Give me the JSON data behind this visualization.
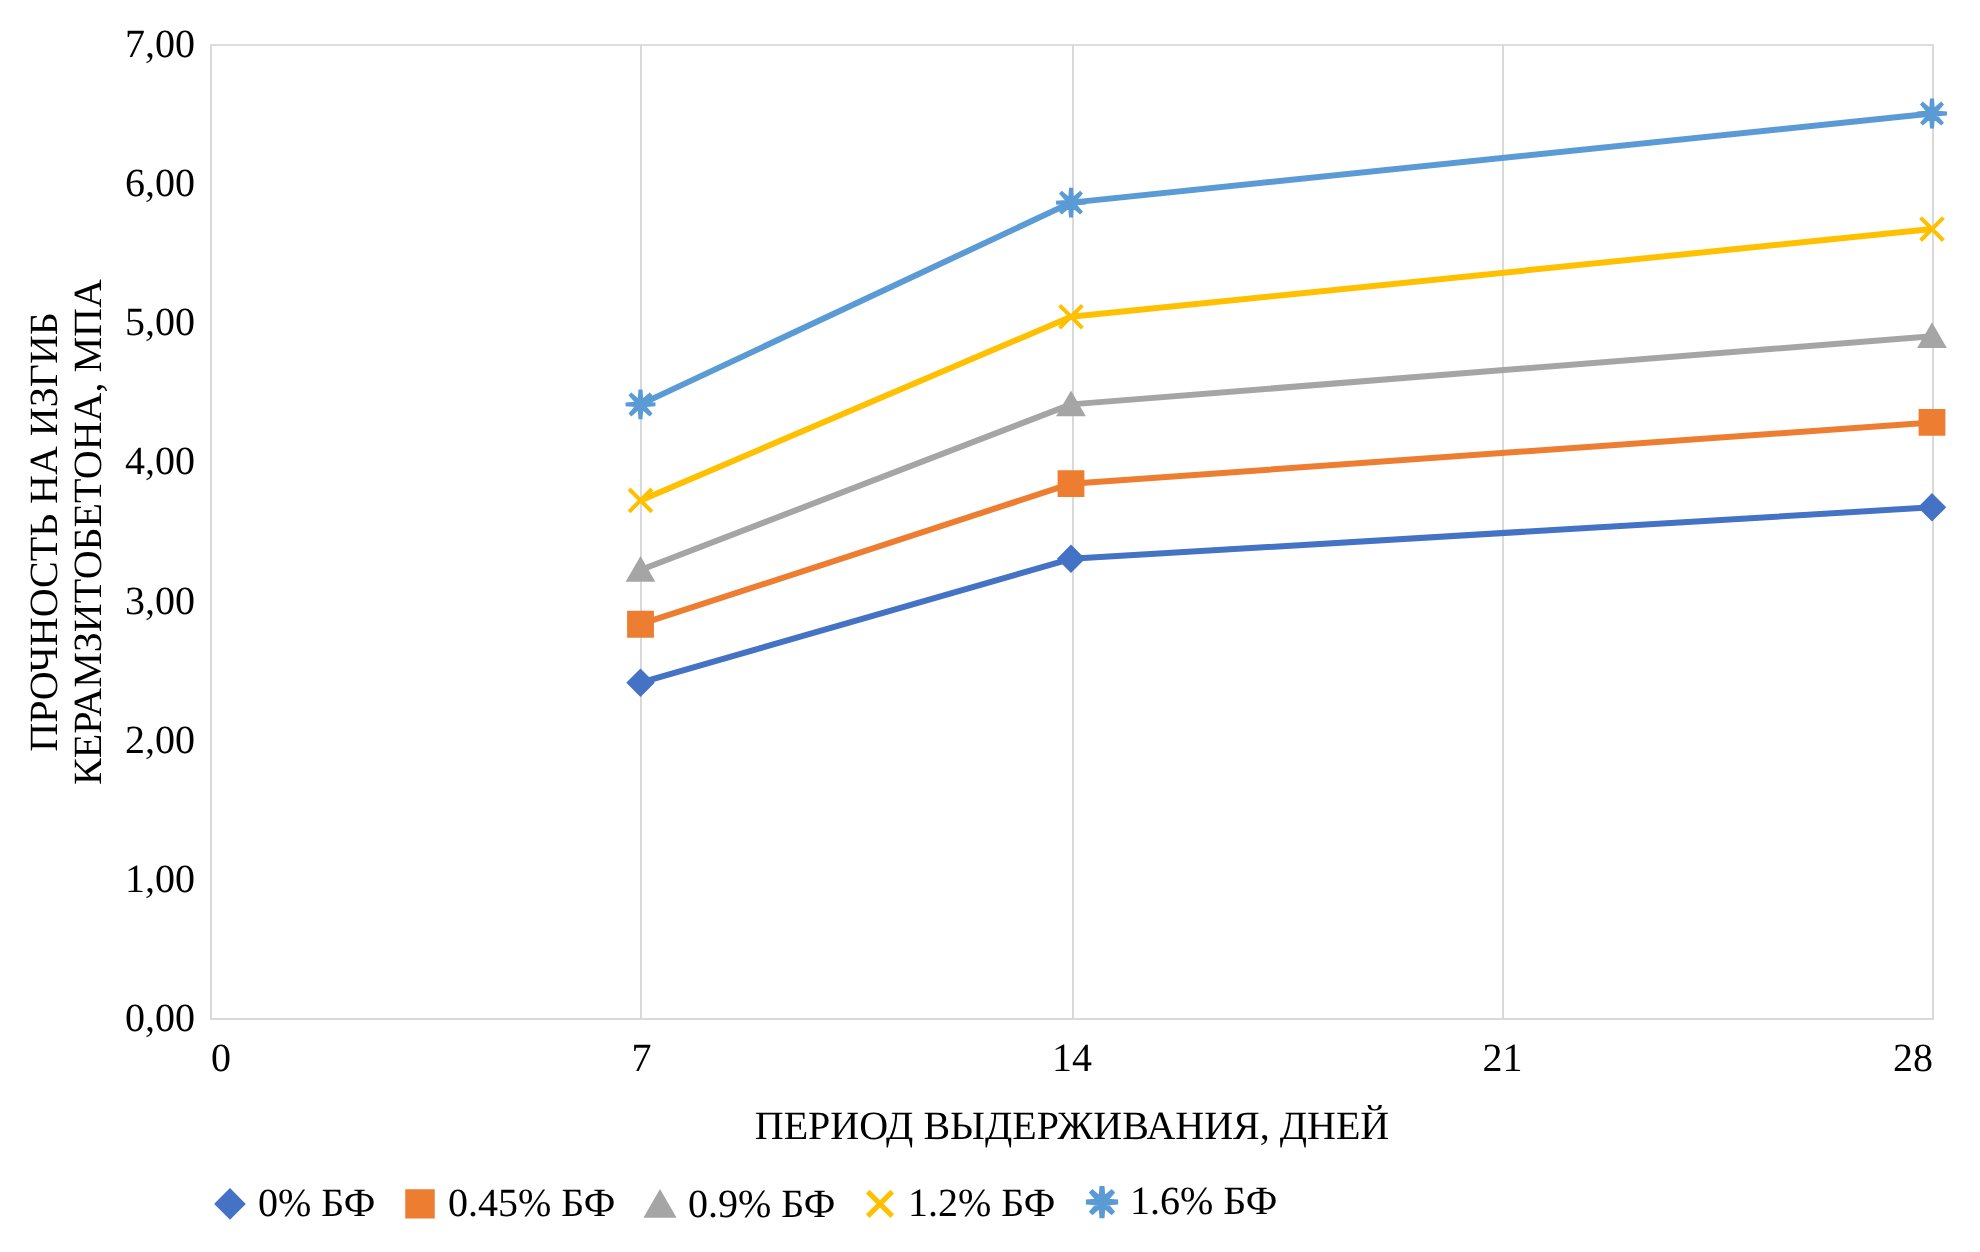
{
  "chart_data": {
    "type": "line",
    "xlabel": "ПЕРИОД ВЫДЕРЖИВАНИЯ, ДНЕЙ",
    "ylabel": "ПРОЧНОСТЬ НА ИЗГИБ\nКЕРАМЗИТОБЕТОНА, МПА",
    "x": [
      7,
      14,
      28
    ],
    "series": [
      {
        "name": "0% БФ",
        "color": "#4472c4",
        "marker": "diamond",
        "values": [
          2.41,
          3.3,
          3.67
        ]
      },
      {
        "name": "0.45% БФ",
        "color": "#ed7d31",
        "marker": "square",
        "values": [
          2.83,
          3.84,
          4.28
        ]
      },
      {
        "name": "0.9% БФ",
        "color": "#a5a5a5",
        "marker": "triangle",
        "values": [
          3.22,
          4.41,
          4.9
        ]
      },
      {
        "name": "1.2% БФ",
        "color": "#ffc000",
        "marker": "cross",
        "values": [
          3.72,
          5.04,
          5.67
        ]
      },
      {
        "name": "1.6% БФ",
        "color": "#5b9bd5",
        "marker": "star",
        "values": [
          4.41,
          5.86,
          6.5
        ]
      }
    ],
    "xlim": [
      0,
      28
    ],
    "xticks": [
      0,
      7,
      14,
      21,
      28
    ],
    "ylim": [
      0,
      7
    ],
    "yticks": [
      {
        "value": 0,
        "label": "0,00"
      },
      {
        "value": 1,
        "label": "1,00"
      },
      {
        "value": 2,
        "label": "2,00"
      },
      {
        "value": 3,
        "label": "3,00"
      },
      {
        "value": 4,
        "label": "4,00"
      },
      {
        "value": 5,
        "label": "5,00"
      },
      {
        "value": 6,
        "label": "6,00"
      },
      {
        "value": 7,
        "label": "7,00"
      }
    ],
    "grid": "x",
    "legend": "bottom",
    "line_style": "solid"
  }
}
